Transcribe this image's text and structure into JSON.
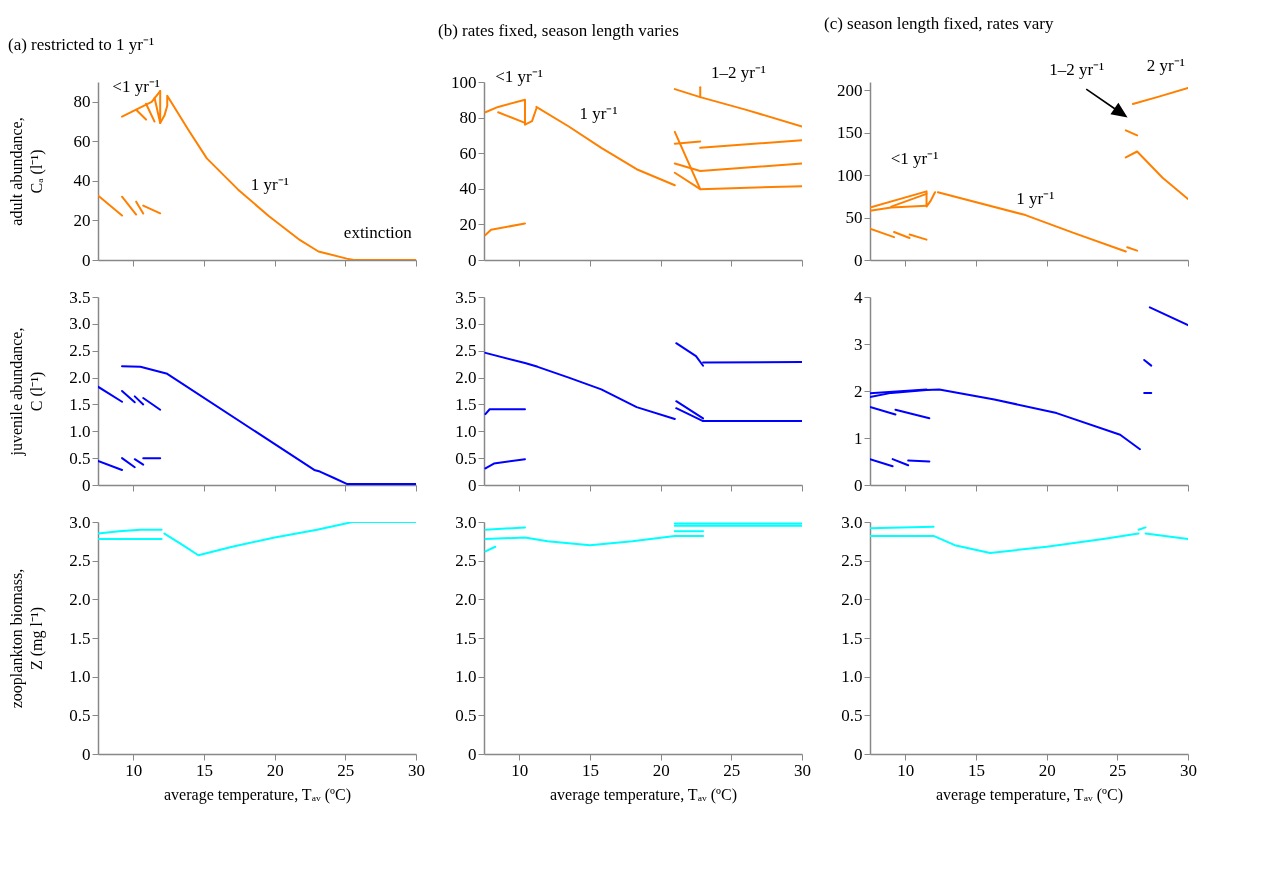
{
  "chart_data": [
    {
      "type": "line",
      "title": "(a) restricted to 1 yr⁻¹",
      "ylabel": "adult abundance,\nCₐ (l⁻¹)",
      "xlim": [
        7.5,
        30
      ],
      "xticks": [
        10,
        15,
        20,
        25,
        30
      ],
      "ylim": [
        0,
        90
      ],
      "yticks": [
        0,
        20,
        40,
        60,
        80
      ],
      "tick_labels": "y",
      "annotations": [
        "<1 yr⁻¹",
        "1 yr⁻¹",
        "extinction"
      ],
      "series": [
        {
          "color": "#ff8000",
          "x": [
            7.5,
            9.2
          ],
          "values": [
            32.6,
            22.5
          ]
        },
        {
          "color": "#ff8000",
          "x": [
            9.2,
            10.2
          ],
          "values": [
            32,
            23
          ]
        },
        {
          "color": "#ff8000",
          "x": [
            10.2,
            10.7
          ],
          "values": [
            29.5,
            23.5
          ]
        },
        {
          "color": "#ff8000",
          "x": [
            10.7,
            11.9
          ],
          "values": [
            27.5,
            23.6
          ]
        },
        {
          "color": "#ff8000",
          "x": [
            9.2,
            11.3,
            11.9
          ],
          "values": [
            72.5,
            80,
            85.4
          ]
        },
        {
          "color": "#ff8000",
          "x": [
            10.2,
            10.9
          ],
          "values": [
            76,
            71
          ]
        },
        {
          "color": "#ff8000",
          "x": [
            10.9,
            11.5
          ],
          "values": [
            79,
            70
          ]
        },
        {
          "color": "#ff8000",
          "x": [
            11.5,
            11.9,
            11.9
          ],
          "values": [
            82,
            69.3,
            85.4
          ]
        },
        {
          "color": "#ff8000",
          "x": [
            11.9,
            12.2,
            12.4,
            12.4,
            13.9,
            15.2,
            17.4,
            19.6,
            21.8,
            23.1,
            25.1,
            25.6,
            30
          ],
          "values": [
            69.3,
            73,
            78,
            83,
            65.7,
            51.4,
            35.7,
            22.1,
            10,
            4.3,
            0.7,
            0,
            0
          ]
        }
      ]
    },
    {
      "type": "line",
      "title": "(b) rates fixed, season length varies",
      "xlim": [
        7.5,
        30
      ],
      "xticks": [
        10,
        15,
        20,
        25,
        30
      ],
      "ylim": [
        0,
        100
      ],
      "yticks": [
        0,
        20,
        40,
        60,
        80,
        100
      ],
      "tick_labels": "y",
      "annotations": [
        "<1 yr⁻¹",
        "1 yr⁻¹",
        "1–2 yr⁻¹"
      ],
      "series": [
        {
          "color": "#ff8000",
          "x": [
            7.6,
            8.0,
            10.4
          ],
          "values": [
            14,
            17,
            20.5
          ]
        },
        {
          "color": "#ff8000",
          "x": [
            7.6,
            8.5,
            10.4,
            10.4,
            10.9,
            11.2
          ],
          "values": [
            83,
            86,
            90,
            76,
            78,
            85
          ]
        },
        {
          "color": "#ff8000",
          "x": [
            8.5,
            10.4
          ],
          "values": [
            83,
            77
          ]
        },
        {
          "color": "#ff8000",
          "x": [
            11.2,
            13.5,
            15.8,
            18.3,
            21
          ],
          "values": [
            86,
            75,
            63,
            51,
            42
          ]
        },
        {
          "color": "#ff8000",
          "x": [
            21,
            22.8,
            26,
            30
          ],
          "values": [
            96,
            91.5,
            84.5,
            75
          ]
        },
        {
          "color": "#ff8000",
          "x": [
            22.8,
            22.8
          ],
          "values": [
            91.5,
            97
          ]
        },
        {
          "color": "#ff8000",
          "x": [
            21,
            22.8
          ],
          "values": [
            65.3,
            66.6
          ]
        },
        {
          "color": "#ff8000",
          "x": [
            22.8,
            30
          ],
          "values": [
            63,
            67.3
          ]
        },
        {
          "color": "#ff8000",
          "x": [
            21,
            22.8
          ],
          "values": [
            72,
            39.8
          ]
        },
        {
          "color": "#ff8000",
          "x": [
            21,
            22.8,
            30
          ],
          "values": [
            54.2,
            50,
            54.2
          ]
        },
        {
          "color": "#ff8000",
          "x": [
            21,
            22.8,
            30
          ],
          "values": [
            49,
            39.8,
            41.5
          ]
        }
      ]
    },
    {
      "type": "line",
      "title": "(c) season length fixed, rates vary",
      "xlim": [
        7.5,
        30
      ],
      "xticks": [
        10,
        15,
        20,
        25,
        30
      ],
      "ylim": [
        0,
        210
      ],
      "yticks": [
        0,
        50,
        100,
        150,
        200
      ],
      "tick_labels": "y",
      "annotations": [
        "<1 yr⁻¹",
        "1 yr⁻¹",
        "1–2 yr⁻¹",
        "2 yr⁻¹"
      ],
      "series": [
        {
          "color": "#ff8000",
          "x": [
            7.5,
            11.5,
            11.5,
            11.8,
            12.1
          ],
          "values": [
            62,
            81,
            63,
            70,
            80
          ]
        },
        {
          "color": "#ff8000",
          "x": [
            7.5,
            9,
            11.5
          ],
          "values": [
            58,
            62,
            64
          ]
        },
        {
          "color": "#ff8000",
          "x": [
            9,
            11.5
          ],
          "values": [
            63,
            78
          ]
        },
        {
          "color": "#ff8000",
          "x": [
            12.3,
            18.5,
            21.9,
            25.6
          ],
          "values": [
            80,
            53,
            32,
            10
          ]
        },
        {
          "color": "#ff8000",
          "x": [
            25.7,
            26.4
          ],
          "values": [
            15,
            11
          ]
        },
        {
          "color": "#ff8000",
          "x": [
            7.5,
            9.2
          ],
          "values": [
            37,
            27
          ]
        },
        {
          "color": "#ff8000",
          "x": [
            9.2,
            10.3
          ],
          "values": [
            33,
            26
          ]
        },
        {
          "color": "#ff8000",
          "x": [
            10.3,
            11.5
          ],
          "values": [
            30,
            24
          ]
        },
        {
          "color": "#ff8000",
          "x": [
            25.6,
            26.4
          ],
          "values": [
            153,
            147
          ]
        },
        {
          "color": "#ff8000",
          "x": [
            25.6,
            26.4,
            28.2,
            30
          ],
          "values": [
            121,
            128,
            97,
            72
          ]
        },
        {
          "color": "#ff8000",
          "x": [
            26.1,
            28,
            30
          ],
          "values": [
            184,
            193,
            203
          ]
        }
      ]
    },
    {
      "type": "line",
      "ylabel": "juvenile abundance,\nC (l⁻¹)",
      "xlim": [
        7.5,
        30
      ],
      "xticks": [
        10,
        15,
        20,
        25,
        30
      ],
      "ylim": [
        0,
        3.5
      ],
      "yticks": [
        0,
        0.5,
        {
          "value": 1,
          "label": "1.0"
        },
        1.5,
        {
          "value": 2,
          "label": "2.0"
        },
        2.5,
        {
          "value": 3,
          "label": "3.0"
        },
        3.5
      ],
      "tick_labels": "y",
      "series": [
        {
          "color": "#0000ff",
          "x": [
            7.5,
            9.2
          ],
          "values": [
            1.83,
            1.55
          ]
        },
        {
          "color": "#0000ff",
          "x": [
            9.2,
            10.1
          ],
          "values": [
            1.75,
            1.54
          ]
        },
        {
          "color": "#0000ff",
          "x": [
            10.1,
            10.7
          ],
          "values": [
            1.65,
            1.5
          ]
        },
        {
          "color": "#0000ff",
          "x": [
            10.7,
            11.9
          ],
          "values": [
            1.62,
            1.4
          ]
        },
        {
          "color": "#0000ff",
          "x": [
            7.5,
            9.2
          ],
          "values": [
            0.45,
            0.28
          ]
        },
        {
          "color": "#0000ff",
          "x": [
            9.2,
            10.1
          ],
          "values": [
            0.5,
            0.33
          ]
        },
        {
          "color": "#0000ff",
          "x": [
            10.1,
            10.7
          ],
          "values": [
            0.48,
            0.38
          ]
        },
        {
          "color": "#0000ff",
          "x": [
            10.7,
            11.9
          ],
          "values": [
            0.5,
            0.5
          ]
        },
        {
          "color": "#0000ff",
          "x": [
            9.2,
            10.5,
            12.4,
            22.8,
            23.2,
            24.2,
            25.1,
            30
          ],
          "values": [
            2.21,
            2.2,
            2.07,
            0.28,
            0.25,
            0.13,
            0.02,
            0.02
          ]
        }
      ]
    },
    {
      "type": "line",
      "xlim": [
        7.5,
        30
      ],
      "xticks": [
        10,
        15,
        20,
        25,
        30
      ],
      "ylim": [
        0,
        3.5
      ],
      "yticks": [
        0,
        0.5,
        {
          "value": 1,
          "label": "1.0"
        },
        1.5,
        {
          "value": 2,
          "label": "2.0"
        },
        2.5,
        {
          "value": 3,
          "label": "3.0"
        },
        3.5
      ],
      "tick_labels": "y",
      "series": [
        {
          "color": "#0000ff",
          "x": [
            7.6,
            10.4,
            11.3,
            13.5,
            15.8,
            18.3,
            21
          ],
          "values": [
            2.46,
            2.27,
            2.2,
            2.0,
            1.78,
            1.45,
            1.23
          ]
        },
        {
          "color": "#0000ff",
          "x": [
            7.6,
            7.9,
            10.4
          ],
          "values": [
            1.32,
            1.41,
            1.41
          ]
        },
        {
          "color": "#0000ff",
          "x": [
            7.6,
            8.2,
            10.4
          ],
          "values": [
            0.31,
            0.4,
            0.48
          ]
        },
        {
          "color": "#0000ff",
          "x": [
            21.1,
            22.5,
            23
          ],
          "values": [
            2.64,
            2.4,
            2.22
          ]
        },
        {
          "color": "#0000ff",
          "x": [
            23,
            30
          ],
          "values": [
            2.28,
            2.29
          ]
        },
        {
          "color": "#0000ff",
          "x": [
            21.1,
            23
          ],
          "values": [
            1.56,
            1.24
          ]
        },
        {
          "color": "#0000ff",
          "x": [
            21.1,
            23,
            30
          ],
          "values": [
            1.43,
            1.19,
            1.19
          ]
        }
      ]
    },
    {
      "type": "line",
      "xlim": [
        7.5,
        30
      ],
      "xticks": [
        10,
        15,
        20,
        25,
        30
      ],
      "ylim": [
        0,
        4
      ],
      "yticks": [
        0,
        1,
        2,
        3,
        4
      ],
      "tick_labels": "y",
      "series": [
        {
          "color": "#0000ff",
          "x": [
            7.5,
            9,
            11.5,
            12.4,
            16.3,
            20.7,
            25.2,
            26.6
          ],
          "values": [
            1.87,
            1.96,
            2.02,
            2.03,
            1.82,
            1.53,
            1.07,
            0.76
          ]
        },
        {
          "color": "#0000ff",
          "x": [
            7.5,
            11.5
          ],
          "values": [
            1.95,
            2.03
          ]
        },
        {
          "color": "#0000ff",
          "x": [
            7.5,
            9.3
          ],
          "values": [
            1.66,
            1.5
          ]
        },
        {
          "color": "#0000ff",
          "x": [
            9.3,
            11.7
          ],
          "values": [
            1.6,
            1.42
          ]
        },
        {
          "color": "#0000ff",
          "x": [
            7.5,
            9.1
          ],
          "values": [
            0.55,
            0.4
          ]
        },
        {
          "color": "#0000ff",
          "x": [
            9.1,
            10.2
          ],
          "values": [
            0.55,
            0.42
          ]
        },
        {
          "color": "#0000ff",
          "x": [
            10.2,
            11.7
          ],
          "values": [
            0.52,
            0.5
          ]
        },
        {
          "color": "#0000ff",
          "x": [
            27.3,
            30
          ],
          "values": [
            3.78,
            3.4
          ]
        },
        {
          "color": "#0000ff",
          "x": [
            26.9,
            27.4
          ],
          "values": [
            2.66,
            2.54
          ]
        },
        {
          "color": "#0000ff",
          "x": [
            26.9,
            27.4
          ],
          "values": [
            1.96,
            1.96
          ]
        }
      ]
    },
    {
      "type": "line",
      "ylabel": "zooplankton biomass,\nZ (mg l⁻¹)",
      "xlabel": "average temperature, Tₐᵥ (ºC)",
      "xlim": [
        7.5,
        30
      ],
      "xticks": [
        10,
        15,
        20,
        25,
        30
      ],
      "ylim": [
        0,
        3
      ],
      "yticks": [
        0,
        0.5,
        {
          "value": 1,
          "label": "1.0"
        },
        1.5,
        {
          "value": 2,
          "label": "2.0"
        },
        2.5,
        {
          "value": 3,
          "label": "3.0"
        }
      ],
      "series": [
        {
          "color": "#00ffff",
          "x": [
            7.5,
            9,
            10.5,
            12
          ],
          "values": [
            2.85,
            2.88,
            2.9,
            2.9
          ]
        },
        {
          "color": "#00ffff",
          "x": [
            7.5,
            12
          ],
          "values": [
            2.78,
            2.78
          ]
        },
        {
          "color": "#00ffff",
          "x": [
            12.2,
            13.5,
            14.6,
            17,
            20,
            23,
            25.5,
            30
          ],
          "values": [
            2.85,
            2.7,
            2.57,
            2.68,
            2.8,
            2.9,
            3.0,
            3.0
          ]
        }
      ]
    },
    {
      "type": "line",
      "xlabel": "average temperature, Tₐᵥ (ºC)",
      "xlim": [
        7.5,
        30
      ],
      "xticks": [
        10,
        15,
        20,
        25,
        30
      ],
      "ylim": [
        0,
        3
      ],
      "yticks": [
        0,
        0.5,
        {
          "value": 1,
          "label": "1.0"
        },
        1.5,
        {
          "value": 2,
          "label": "2.0"
        },
        2.5,
        {
          "value": 3,
          "label": "3.0"
        }
      ],
      "series": [
        {
          "color": "#00ffff",
          "x": [
            7.6,
            10.4
          ],
          "values": [
            2.9,
            2.93
          ]
        },
        {
          "color": "#00ffff",
          "x": [
            7.6,
            8.3
          ],
          "values": [
            2.62,
            2.68
          ]
        },
        {
          "color": "#00ffff",
          "x": [
            7.6,
            10.4,
            12,
            15,
            18,
            21,
            23
          ],
          "values": [
            2.78,
            2.8,
            2.75,
            2.7,
            2.75,
            2.82,
            2.82
          ]
        },
        {
          "color": "#00ffff",
          "x": [
            21,
            30
          ],
          "values": [
            2.98,
            2.98
          ]
        },
        {
          "color": "#00ffff",
          "x": [
            21,
            30
          ],
          "values": [
            2.95,
            2.95
          ]
        },
        {
          "color": "#00ffff",
          "x": [
            21,
            23
          ],
          "values": [
            2.88,
            2.88
          ]
        }
      ]
    },
    {
      "type": "line",
      "xlabel": "average temperature, Tₐᵥ (ºC)",
      "xlim": [
        7.5,
        30
      ],
      "xticks": [
        10,
        15,
        20,
        25,
        30
      ],
      "ylim": [
        0,
        3
      ],
      "yticks": [
        0,
        0.5,
        {
          "value": 1,
          "label": "1.0"
        },
        1.5,
        {
          "value": 2,
          "label": "2.0"
        },
        2.5,
        {
          "value": 3,
          "label": "3.0"
        }
      ],
      "series": [
        {
          "color": "#00ffff",
          "x": [
            7.5,
            12
          ],
          "values": [
            2.92,
            2.94
          ]
        },
        {
          "color": "#00ffff",
          "x": [
            7.5,
            12,
            13.5,
            16,
            20,
            24,
            26.5
          ],
          "values": [
            2.82,
            2.82,
            2.7,
            2.6,
            2.68,
            2.78,
            2.85
          ]
        },
        {
          "color": "#00ffff",
          "x": [
            26.5,
            27
          ],
          "values": [
            2.9,
            2.93
          ]
        },
        {
          "color": "#00ffff",
          "x": [
            27,
            30
          ],
          "values": [
            2.85,
            2.78
          ]
        }
      ]
    }
  ]
}
